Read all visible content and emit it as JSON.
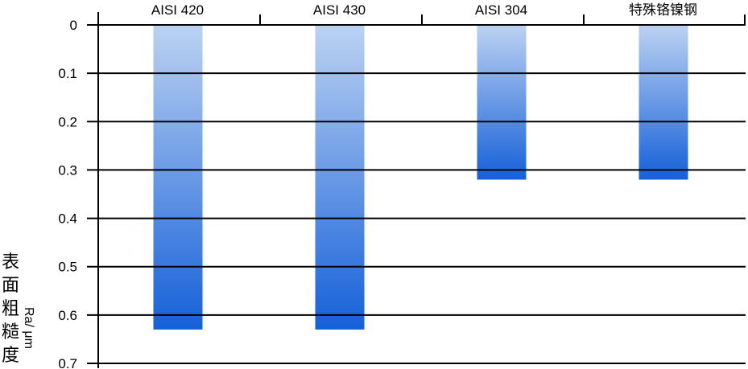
{
  "chart_data": {
    "type": "bar",
    "orientation": "vertical-hanging",
    "categories": [
      "AISI 420",
      "AISI 430",
      "AISI 304",
      "特殊铬镍钢"
    ],
    "values": [
      0.63,
      0.63,
      0.32,
      0.32
    ],
    "ylabel": "表面粗糙度",
    "yunit": "Ra/ μm",
    "ylim": [
      0,
      0.7
    ],
    "yticks": [
      "0",
      "0.1",
      "0.2",
      "0.3",
      "0.4",
      "0.5",
      "0.6",
      "0.7"
    ],
    "y_axis_inverted": true,
    "xaxis_position": "top",
    "grid": true,
    "bar_gradient": [
      "#bcd2f2",
      "#1560d8"
    ]
  }
}
